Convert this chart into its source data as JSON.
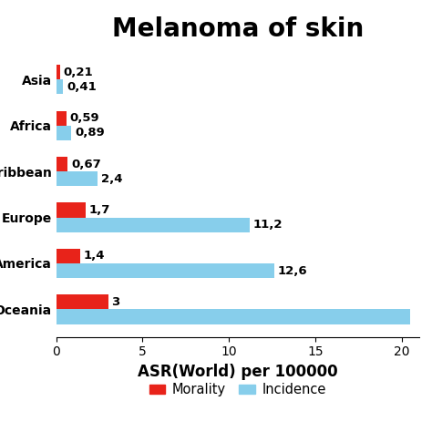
{
  "title": "Melanoma of skin",
  "xlabel": "ASR(World) per 100000",
  "regions": [
    "Oceania",
    "America",
    "Europe",
    "Caribbean",
    "Africa",
    "Asia"
  ],
  "morality": [
    3.0,
    1.4,
    1.7,
    0.67,
    0.59,
    0.21
  ],
  "incidence": [
    20.5,
    12.6,
    11.2,
    2.4,
    0.89,
    0.41
  ],
  "morality_labels": [
    "3",
    "1,4",
    "1,7",
    "0,67",
    "0,59",
    "0,21"
  ],
  "incidence_labels": [
    "",
    "12,6",
    "11,2",
    "2,4",
    "0,89",
    "0,41"
  ],
  "morality_color": "#e8231a",
  "incidence_color": "#87ceeb",
  "bar_height": 0.32,
  "xlim": [
    0,
    21
  ],
  "legend_morality": "Morality",
  "legend_incidence": "Incidence",
  "title_fontsize": 20,
  "label_fontsize": 9.5,
  "tick_fontsize": 10,
  "xlabel_fontsize": 12
}
